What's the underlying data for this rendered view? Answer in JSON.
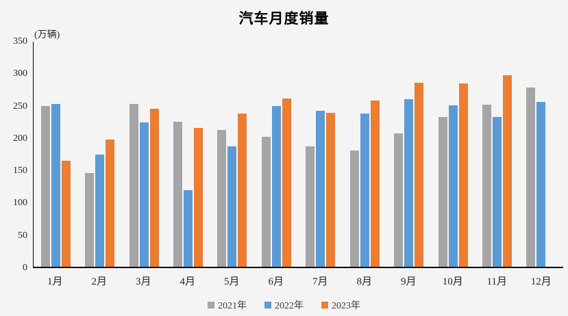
{
  "chart_data": {
    "type": "bar",
    "title": "汽车月度销量",
    "ylabel": "(万辆)",
    "xlabel": "",
    "categories": [
      "1月",
      "2月",
      "3月",
      "4月",
      "5月",
      "6月",
      "7月",
      "8月",
      "9月",
      "10月",
      "11月",
      "12月"
    ],
    "series": [
      {
        "name": "2021年",
        "color": "#A5A5A5",
        "values": [
          250,
          146,
          253,
          226,
          213,
          202,
          187,
          181,
          207,
          233,
          252,
          279
        ]
      },
      {
        "name": "2022年",
        "color": "#5B9BD5",
        "values": [
          253,
          174,
          224,
          119,
          187,
          250,
          243,
          238,
          261,
          251,
          233,
          256
        ]
      },
      {
        "name": "2023年",
        "color": "#ED7D31",
        "values": [
          165,
          198,
          246,
          216,
          238,
          262,
          239,
          258,
          286,
          285,
          298,
          null
        ]
      }
    ],
    "ylim": [
      0,
      350
    ],
    "y_ticks": [
      0,
      50,
      100,
      150,
      200,
      250,
      300,
      350
    ],
    "grid": false,
    "legend_position": "bottom"
  },
  "colors": {
    "background": "#F4F4F4",
    "axis_line": "#000000",
    "tick_text": "#262626",
    "legend_text": "#404040",
    "title_text": "#000000"
  }
}
